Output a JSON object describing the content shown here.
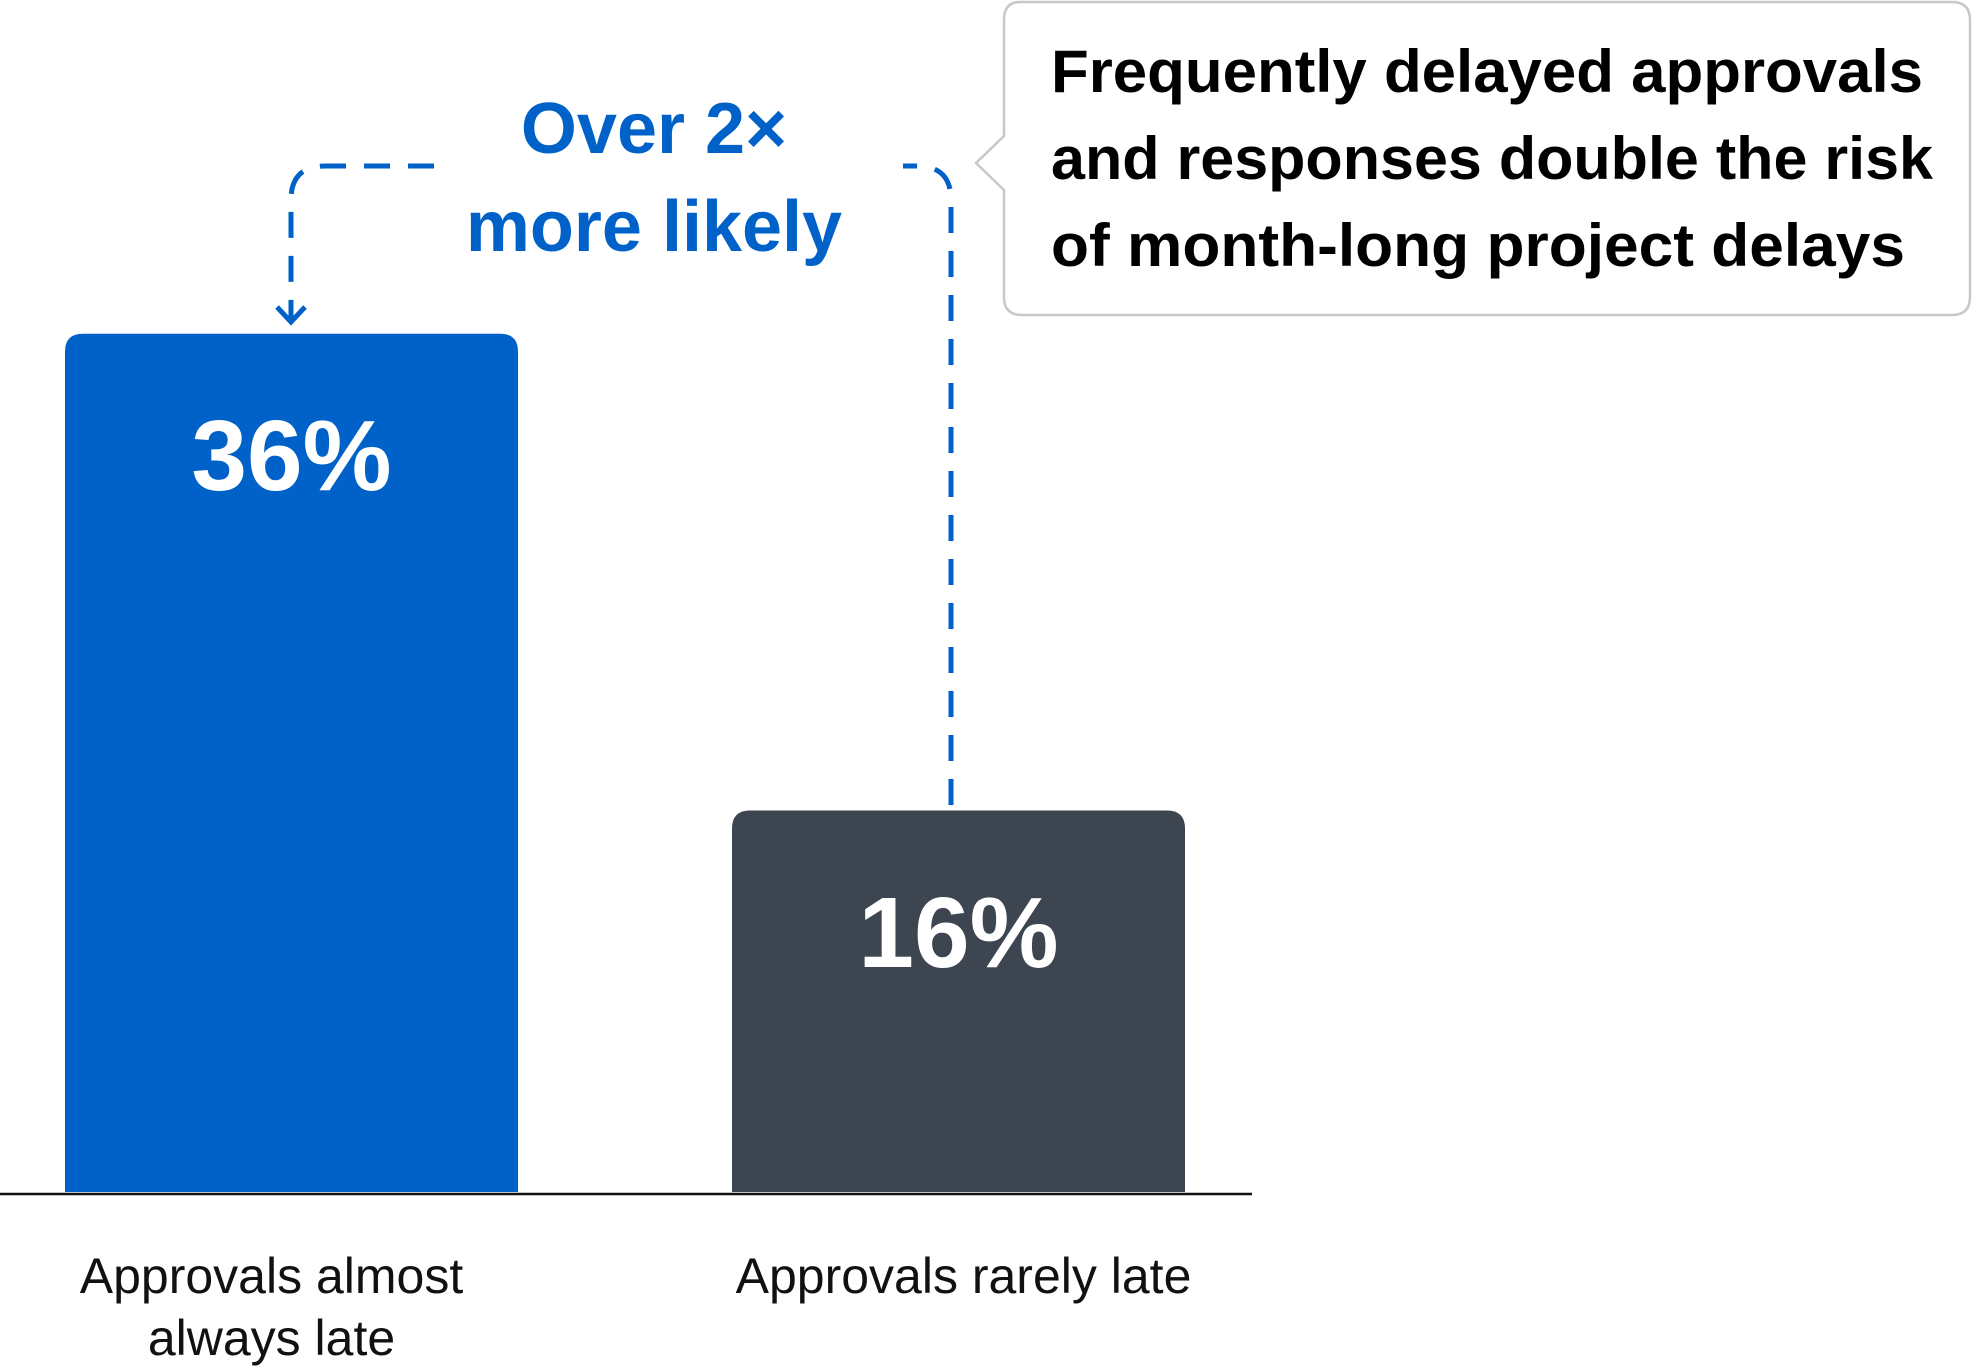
{
  "chart_data": {
    "type": "bar",
    "categories": [
      "Approvals almost always late",
      "Approvals rarely late"
    ],
    "values": [
      36,
      16
    ],
    "value_labels": [
      "36%",
      "16%"
    ],
    "colors": [
      "#0062c8",
      "#3d4650"
    ],
    "ylim": [
      0,
      50
    ],
    "annotation": [
      "Over 2×",
      "more likely"
    ],
    "annotation_color": "#0062c8",
    "callout": [
      "Frequently delayed approvals",
      "and responses double the risk",
      "of month-long project delays"
    ]
  }
}
